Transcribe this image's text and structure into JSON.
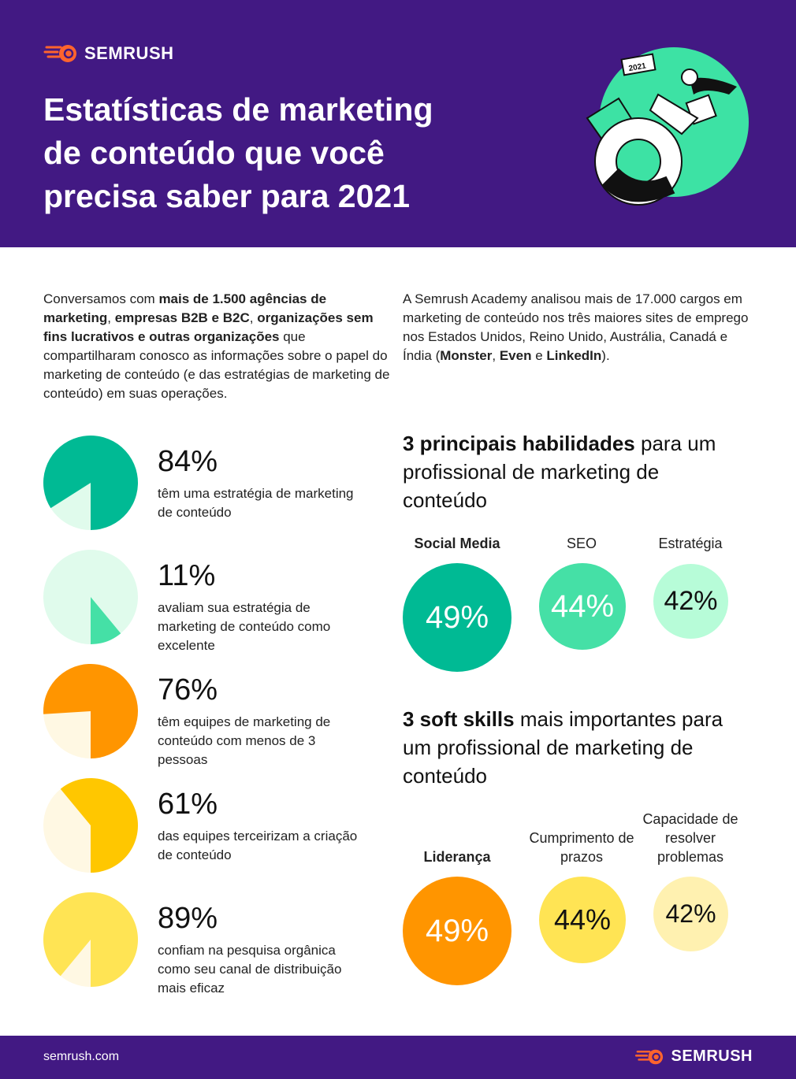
{
  "brand": {
    "name": "SEMRUSH",
    "footer_url": "semrush.com"
  },
  "header": {
    "title_lines": [
      "Estatísticas de marketing",
      "de conteúdo que você",
      "precisa saber para 2021"
    ],
    "illustration_label": "2021"
  },
  "intro": {
    "left": [
      {
        "t": "Conversamos com ",
        "b": false
      },
      {
        "t": "mais de 1.500 agências de marketing",
        "b": true
      },
      {
        "t": ", ",
        "b": false
      },
      {
        "t": "empresas B2B e B2C",
        "b": true
      },
      {
        "t": ", ",
        "b": false
      },
      {
        "t": "organizações sem fins lucrativos e outras organizações",
        "b": true
      },
      {
        "t": " que compartilharam conosco as informações sobre o papel do marketing de conteúdo (e das estratégias de marketing de conteúdo) em suas operações.",
        "b": false
      }
    ],
    "right": [
      {
        "t": "A Semrush Academy analisou mais de 17.000 cargos em marketing de conteúdo nos três maiores sites de emprego nos Estados Unidos, Reino Unido, Austrália, Canadá e Índia (",
        "b": false
      },
      {
        "t": "Monster",
        "b": true
      },
      {
        "t": ", ",
        "b": false
      },
      {
        "t": "Even",
        "b": true
      },
      {
        "t": " e ",
        "b": false
      },
      {
        "t": "LinkedIn",
        "b": true
      },
      {
        "t": ").",
        "b": false
      }
    ]
  },
  "chart_data": [
    {
      "type": "pie",
      "items": [
        {
          "value": 84,
          "label": "84%",
          "desc": "têm uma estratégia de marketing de conteúdo",
          "color": "#00BA94",
          "rest_color": "#E0FBEC"
        },
        {
          "value": 11,
          "label": "11%",
          "desc": "avaliam sua estratégia de marketing de conteúdo como excelente",
          "color": "#45E0A6",
          "rest_color": "#E0FBEC"
        },
        {
          "value": 76,
          "label": "76%",
          "desc": "têm equipes de marketing de conteúdo com menos de 3 pessoas",
          "color": "#FF9500",
          "rest_color": "#FFF8E3"
        },
        {
          "value": 61,
          "label": "61%",
          "desc": "das equipes terceirizam a criação de conteúdo",
          "color": "#FFC700",
          "rest_color": "#FFF8E3"
        },
        {
          "value": 89,
          "label": "89%",
          "desc": "confiam na pesquisa orgânica como seu canal de distribuição mais eficaz",
          "color": "#FFE454",
          "rest_color": "#FFF8E3"
        }
      ]
    },
    {
      "type": "bubble",
      "title_bold": "3 principais habilidades",
      "title_rest": " para um profissional de marketing de conteúdo",
      "items": [
        {
          "label": "Social Media",
          "value": 49,
          "display": "49%",
          "color": "#00BA94",
          "text_color": "#ffffff",
          "bold": true
        },
        {
          "label": "SEO",
          "value": 44,
          "display": "44%",
          "color": "#45E0A6",
          "text_color": "#ffffff",
          "bold": false
        },
        {
          "label": "Estratégia",
          "value": 42,
          "display": "42%",
          "color": "#B7FCD8",
          "text_color": "#111111",
          "bold": false
        }
      ]
    },
    {
      "type": "bubble",
      "title_bold": "3 soft skills",
      "title_rest": " mais importantes para um profissional de marketing de conteúdo",
      "items": [
        {
          "label": "Liderança",
          "value": 49,
          "display": "49%",
          "color": "#FF9500",
          "text_color": "#ffffff",
          "bold": true
        },
        {
          "label": "Cumprimento de prazos",
          "value": 44,
          "display": "44%",
          "color": "#FFE454",
          "text_color": "#111111",
          "bold": false
        },
        {
          "label": "Capacidade de resolver problemas",
          "value": 42,
          "display": "42%",
          "color": "#FFF1B0",
          "text_color": "#111111",
          "bold": false
        }
      ]
    }
  ],
  "colors": {
    "header_bg": "#421983",
    "brand_orange": "#FF642D"
  }
}
